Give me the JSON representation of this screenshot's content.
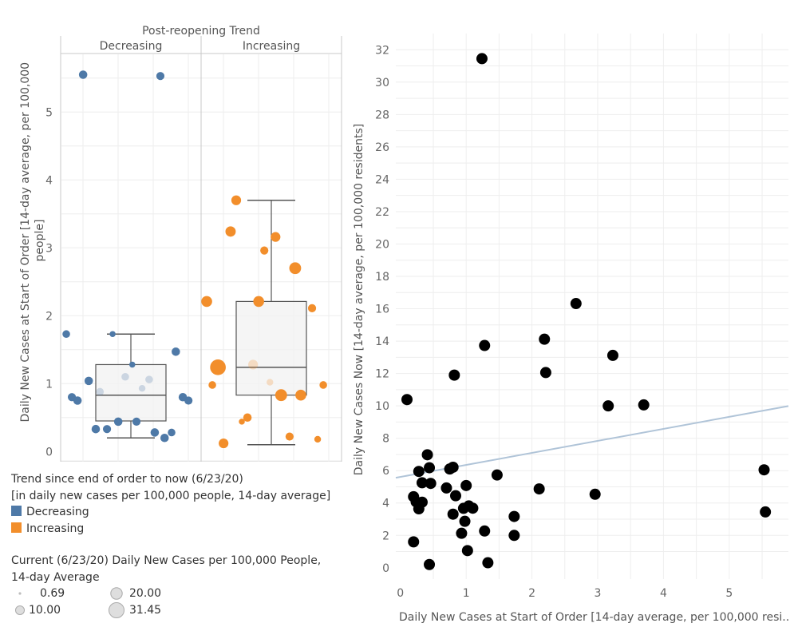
{
  "colors": {
    "decreasing": "#4e79a7",
    "increasing": "#f28e2b",
    "scatter_point": "#000000",
    "trend_line": "#b0c4d8",
    "box_fill": "#f2f2f2",
    "grid": "#eeeeee"
  },
  "left_chart": {
    "header": "Post-reopening Trend",
    "panels": [
      "Decreasing",
      "Increasing"
    ],
    "ylabel": "Daily New Cases at Start of Order [14-day average, per 100,000 people]",
    "yticks": [
      "0",
      "1",
      "2",
      "3",
      "4",
      "5"
    ]
  },
  "right_chart": {
    "xlabel": "Daily New Cases at Start of Order [14-day average, per 100,000 resi..",
    "ylabel": "Daily New Cases Now [14-day average, per 100,000 residents]",
    "xticks": [
      "0",
      "1",
      "2",
      "3",
      "4",
      "5"
    ],
    "yticks": [
      "0",
      "2",
      "4",
      "6",
      "8",
      "10",
      "12",
      "14",
      "16",
      "18",
      "20",
      "22",
      "24",
      "26",
      "28",
      "30",
      "32"
    ]
  },
  "legend": {
    "color_title_line1": "Trend since end of order to now (6/23/20)",
    "color_title_line2": "[in daily new cases per 100,000 people, 14-day average]",
    "color_items": [
      "Decreasing",
      "Increasing"
    ],
    "size_title_line1": "Current (6/23/20) Daily New Cases per 100,000 People,",
    "size_title_line2": "14-day Average",
    "size_items": [
      "0.69",
      "10.00",
      "20.00",
      "31.45"
    ]
  },
  "chart_data": [
    {
      "type": "scatter",
      "title": "Post-reopening Trend",
      "ylabel": "Daily New Cases at Start of Order [14-day average, per 100,000 people]",
      "ylim": [
        -0.15,
        5.85
      ],
      "grid": true,
      "box_stats": {
        "Decreasing": {
          "min": 0.2,
          "q1": 0.45,
          "median": 0.83,
          "q3": 1.28,
          "max": 1.73
        },
        "Increasing": {
          "min": 0.1,
          "q1": 0.83,
          "median": 1.24,
          "q3": 2.21,
          "max": 3.7
        }
      },
      "series": [
        {
          "name": "Decreasing",
          "points": [
            {
              "j": 0.16,
              "y": 5.55,
              "size": 2.0
            },
            {
              "j": 0.71,
              "y": 5.53,
              "size": 1.8
            },
            {
              "j": 0.04,
              "y": 1.73,
              "size": 1.5
            },
            {
              "j": 0.37,
              "y": 1.73,
              "size": 0.69
            },
            {
              "j": 0.82,
              "y": 1.47,
              "size": 2.0
            },
            {
              "j": 0.51,
              "y": 1.28,
              "size": 0.69
            },
            {
              "j": 0.2,
              "y": 1.04,
              "size": 2.0
            },
            {
              "j": 0.46,
              "y": 1.1,
              "size": 1.5
            },
            {
              "j": 0.63,
              "y": 1.06,
              "size": 1.5
            },
            {
              "j": 0.58,
              "y": 0.93,
              "size": 1.0
            },
            {
              "j": 0.28,
              "y": 0.88,
              "size": 1.5
            },
            {
              "j": 0.08,
              "y": 0.8,
              "size": 1.8
            },
            {
              "j": 0.12,
              "y": 0.75,
              "size": 2.0
            },
            {
              "j": 0.87,
              "y": 0.8,
              "size": 2.0
            },
            {
              "j": 0.91,
              "y": 0.75,
              "size": 1.8
            },
            {
              "j": 0.41,
              "y": 0.44,
              "size": 2.0
            },
            {
              "j": 0.54,
              "y": 0.44,
              "size": 1.8
            },
            {
              "j": 0.25,
              "y": 0.33,
              "size": 2.0
            },
            {
              "j": 0.33,
              "y": 0.33,
              "size": 1.8
            },
            {
              "j": 0.67,
              "y": 0.28,
              "size": 2.0
            },
            {
              "j": 0.74,
              "y": 0.2,
              "size": 2.0
            },
            {
              "j": 0.79,
              "y": 0.28,
              "size": 1.5
            }
          ]
        },
        {
          "name": "Increasing",
          "points": [
            {
              "j": 0.25,
              "y": 3.7,
              "size": 3.0
            },
            {
              "j": 0.21,
              "y": 3.24,
              "size": 3.5
            },
            {
              "j": 0.53,
              "y": 3.16,
              "size": 3.0
            },
            {
              "j": 0.45,
              "y": 2.96,
              "size": 1.8
            },
            {
              "j": 0.67,
              "y": 2.7,
              "size": 5.0
            },
            {
              "j": 0.04,
              "y": 2.21,
              "size": 4.0
            },
            {
              "j": 0.41,
              "y": 2.21,
              "size": 4.0
            },
            {
              "j": 0.79,
              "y": 2.11,
              "size": 1.8
            },
            {
              "j": 0.12,
              "y": 1.24,
              "size": 10.0
            },
            {
              "j": 0.37,
              "y": 1.28,
              "size": 3.0
            },
            {
              "j": 0.49,
              "y": 1.02,
              "size": 1.0
            },
            {
              "j": 0.08,
              "y": 0.98,
              "size": 1.5
            },
            {
              "j": 0.87,
              "y": 0.98,
              "size": 1.5
            },
            {
              "j": 0.57,
              "y": 0.83,
              "size": 5.0
            },
            {
              "j": 0.71,
              "y": 0.83,
              "size": 4.0
            },
            {
              "j": 0.29,
              "y": 0.44,
              "size": 0.69
            },
            {
              "j": 0.33,
              "y": 0.5,
              "size": 2.0
            },
            {
              "j": 0.16,
              "y": 0.12,
              "size": 3.0
            },
            {
              "j": 0.63,
              "y": 0.22,
              "size": 1.8
            },
            {
              "j": 0.83,
              "y": 0.18,
              "size": 1.0
            }
          ]
        }
      ]
    },
    {
      "type": "scatter",
      "xlabel": "Daily New Cases at Start of Order [14-day average, per 100,000 resi..",
      "ylabel": "Daily New Cases Now [14-day average, per 100,000 residents]",
      "xlim": [
        -0.07,
        5.9
      ],
      "ylim": [
        -0.7,
        33
      ],
      "grid": true,
      "trend_line": {
        "x": [
          -0.07,
          5.9
        ],
        "y": [
          5.56,
          9.99
        ]
      },
      "points": [
        [
          1.24,
          31.45
        ],
        [
          2.67,
          16.32
        ],
        [
          2.19,
          14.12
        ],
        [
          1.28,
          13.73
        ],
        [
          3.23,
          13.12
        ],
        [
          2.21,
          12.06
        ],
        [
          0.82,
          11.9
        ],
        [
          0.1,
          10.39
        ],
        [
          3.16,
          10.0
        ],
        [
          3.7,
          10.06
        ],
        [
          0.41,
          6.98
        ],
        [
          0.28,
          5.95
        ],
        [
          0.44,
          6.18
        ],
        [
          0.75,
          6.1
        ],
        [
          0.8,
          6.21
        ],
        [
          5.53,
          6.05
        ],
        [
          1.47,
          5.73
        ],
        [
          0.33,
          5.25
        ],
        [
          0.46,
          5.21
        ],
        [
          1.0,
          5.08
        ],
        [
          0.7,
          4.93
        ],
        [
          2.11,
          4.87
        ],
        [
          0.84,
          4.45
        ],
        [
          2.96,
          4.54
        ],
        [
          0.2,
          4.39
        ],
        [
          0.24,
          4.07
        ],
        [
          0.33,
          4.05
        ],
        [
          1.04,
          3.82
        ],
        [
          1.1,
          3.68
        ],
        [
          0.96,
          3.67
        ],
        [
          0.28,
          3.64
        ],
        [
          5.55,
          3.45
        ],
        [
          0.8,
          3.31
        ],
        [
          1.73,
          3.17
        ],
        [
          0.98,
          2.87
        ],
        [
          1.28,
          2.27
        ],
        [
          0.93,
          2.13
        ],
        [
          1.73,
          2.0
        ],
        [
          0.2,
          1.6
        ],
        [
          1.02,
          1.06
        ],
        [
          1.33,
          0.31
        ],
        [
          0.44,
          0.2
        ]
      ]
    }
  ]
}
